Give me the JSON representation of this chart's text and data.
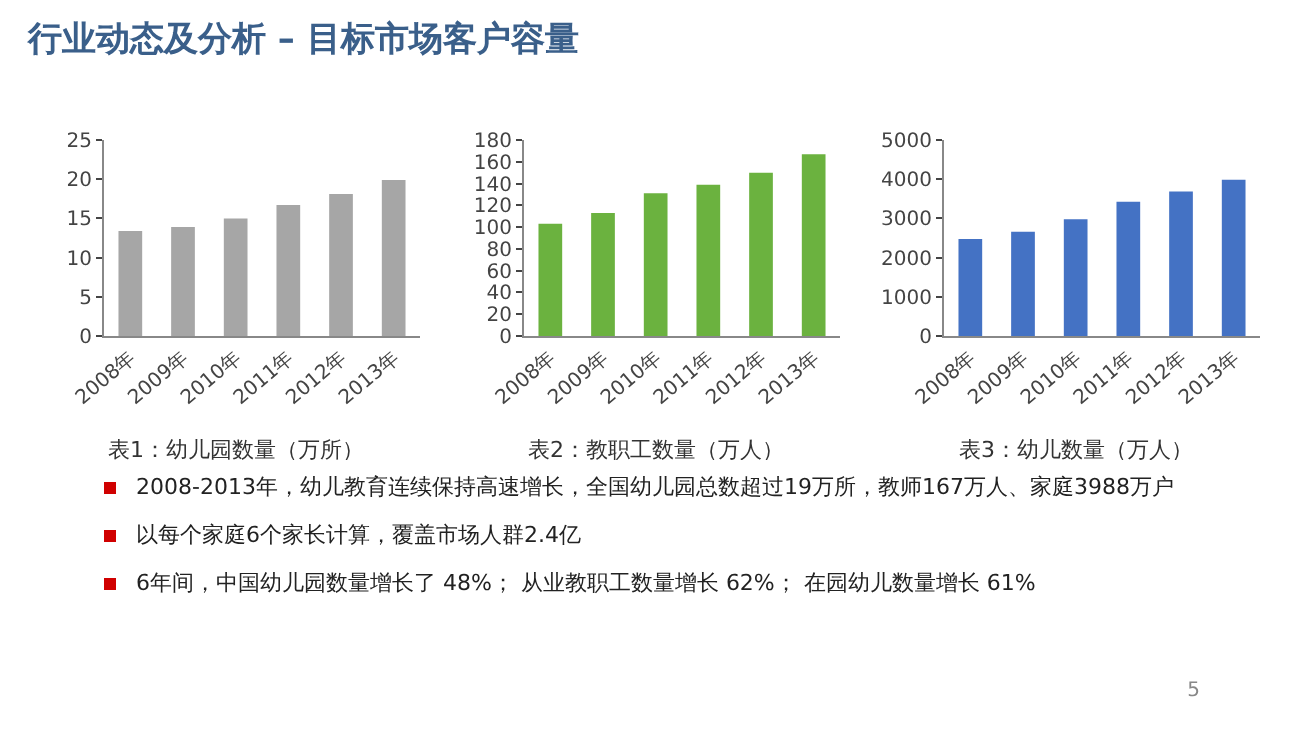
{
  "chart_data": [
    {
      "type": "bar",
      "title": "表1：幼儿园数量（万所）",
      "categories": [
        "2008年",
        "2009年",
        "2010年",
        "2011年",
        "2012年",
        "2013年"
      ],
      "values": [
        13.4,
        13.9,
        15.0,
        16.7,
        18.1,
        19.9
      ],
      "color": "#a6a6a6",
      "ylim": [
        0,
        25
      ],
      "yticks": [
        0,
        5,
        10,
        15,
        20,
        25
      ],
      "grid": false
    },
    {
      "type": "bar",
      "title": "表2：教职工数量（万人）",
      "categories": [
        "2008年",
        "2009年",
        "2010年",
        "2011年",
        "2012年",
        "2013年"
      ],
      "values": [
        103,
        113,
        131,
        139,
        150,
        167
      ],
      "color": "#6bb23f",
      "ylim": [
        0,
        180
      ],
      "yticks": [
        0,
        20,
        40,
        60,
        80,
        100,
        120,
        140,
        160,
        180
      ],
      "grid": false
    },
    {
      "type": "bar",
      "title": "表3：幼儿数量（万人）",
      "categories": [
        "2008年",
        "2009年",
        "2010年",
        "2011年",
        "2012年",
        "2013年"
      ],
      "values": [
        2475,
        2658,
        2977,
        3425,
        3686,
        3988
      ],
      "color": "#4472c4",
      "ylim": [
        0,
        5000
      ],
      "yticks": [
        0,
        1000,
        2000,
        3000,
        4000,
        5000
      ],
      "grid": false
    },
    {
      "type": "other",
      "title": "行业动态及分析 – 目标市场客户容量",
      "annotations": [
        "2008-2013年，幼儿教育连续保持高速增长，全国幼儿园总数超过19万所，教师167万人、家庭3988万户",
        "以每个家庭6个家长计算，覆盖市场人群2.4亿",
        "6年间，中国幼儿园数量增长了 48%； 从业教职工数量增长 62%； 在园幼儿数量增长 61%",
        "5"
      ]
    }
  ]
}
